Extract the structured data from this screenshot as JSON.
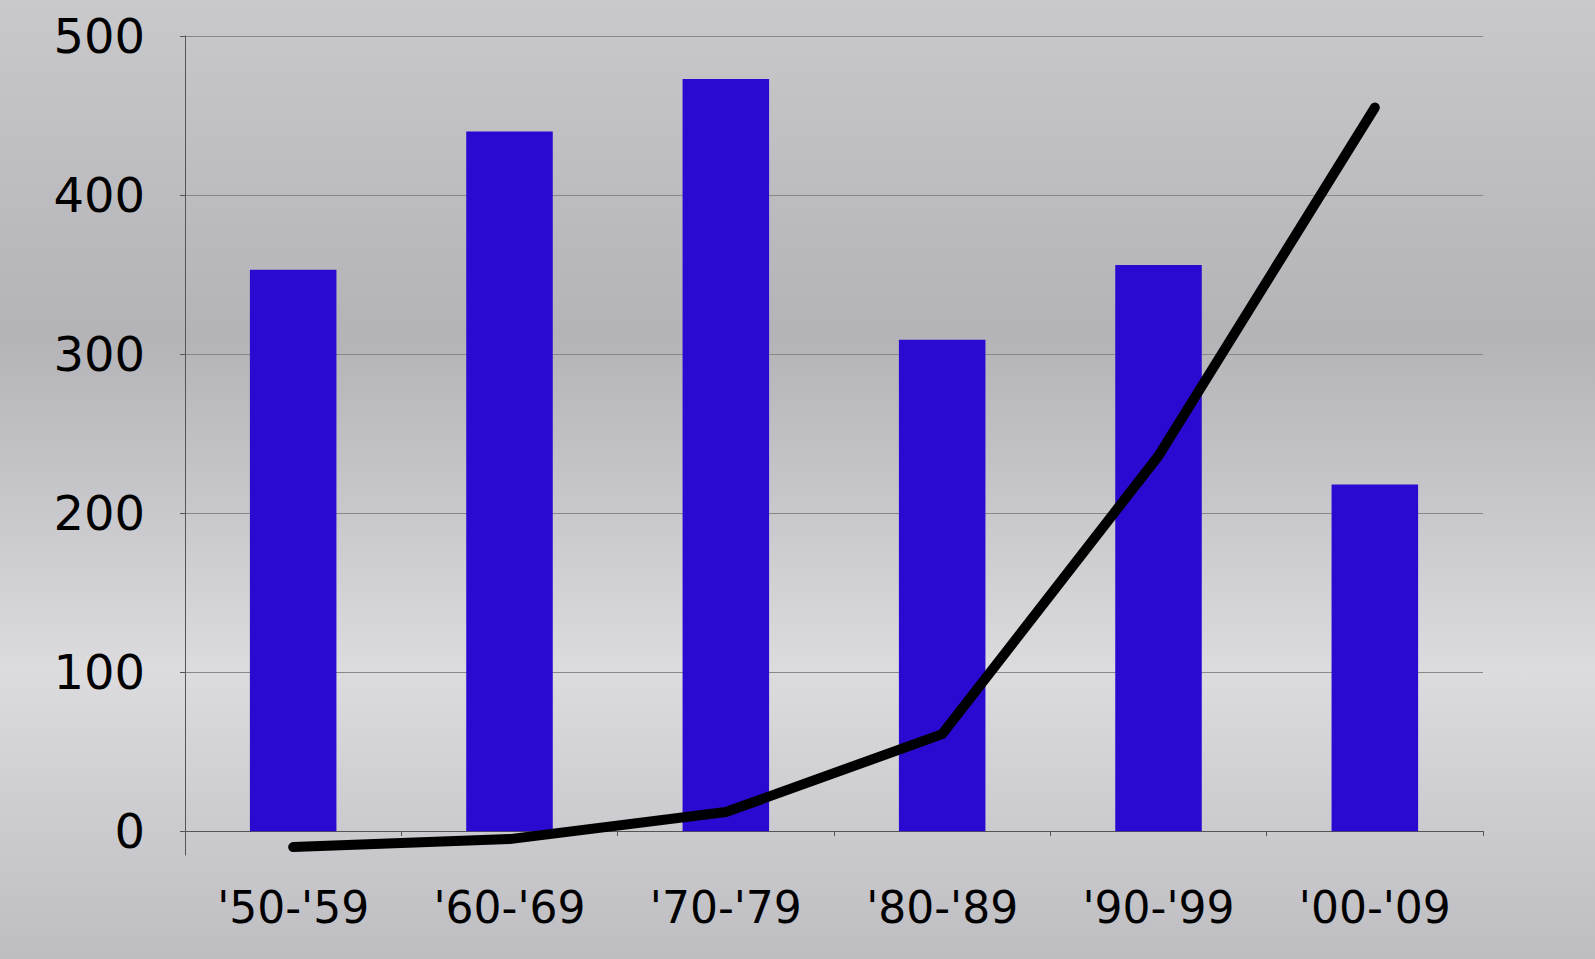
{
  "chart_data": {
    "type": "bar",
    "categories": [
      "'50-'59",
      "'60-'69",
      "'70-'79",
      "'80-'89",
      "'90-'99",
      "'00-'09"
    ],
    "series": [
      {
        "type": "bar",
        "color": "#2a0ad0",
        "values": [
          353,
          440,
          473,
          309,
          356,
          218
        ]
      },
      {
        "type": "line",
        "color": "#000000",
        "values": [
          -10,
          -5,
          12,
          61,
          236,
          455
        ]
      }
    ],
    "ylim": [
      -15,
      500
    ],
    "yticks": [
      0,
      100,
      200,
      300,
      400,
      500
    ],
    "grid": true
  }
}
